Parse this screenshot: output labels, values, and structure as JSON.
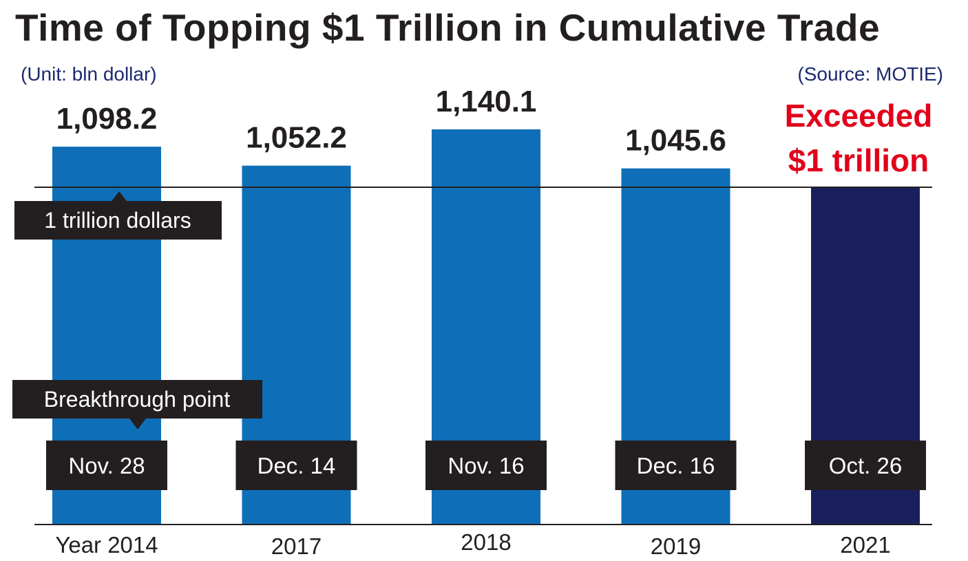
{
  "title": "Time of Topping $1 Trillion in Cumulative Trade",
  "unit": "(Unit: bln dollar)",
  "source": "(Source: MOTIE)",
  "threshold_label": "1 trillion dollars",
  "breakthrough_label": "Breakthrough point",
  "colors": {
    "bar": "#0e6fb8",
    "highlight_bar": "#1a1f5e",
    "red_text": "#e2001a",
    "label_box": "#231f20"
  },
  "chart_data": {
    "type": "bar",
    "categories": [
      "Year 2014",
      "2017",
      "2018",
      "2019",
      "2021"
    ],
    "values": [
      1098.2,
      1052.2,
      1140.1,
      1045.6,
      1000
    ],
    "value_labels": [
      "1,098.2",
      "1,052.2",
      "1,140.1",
      "1,045.6",
      ""
    ],
    "dates": [
      "Nov. 28",
      "Dec. 14",
      "Nov. 16",
      "Dec. 16",
      "Oct. 26"
    ],
    "highlight_index": 4,
    "highlight_label": [
      "Exceeded",
      "$1 trillion"
    ],
    "threshold": 1000,
    "title": "Time of Topping $1 Trillion in Cumulative Trade",
    "xlabel": "",
    "ylabel": ""
  }
}
